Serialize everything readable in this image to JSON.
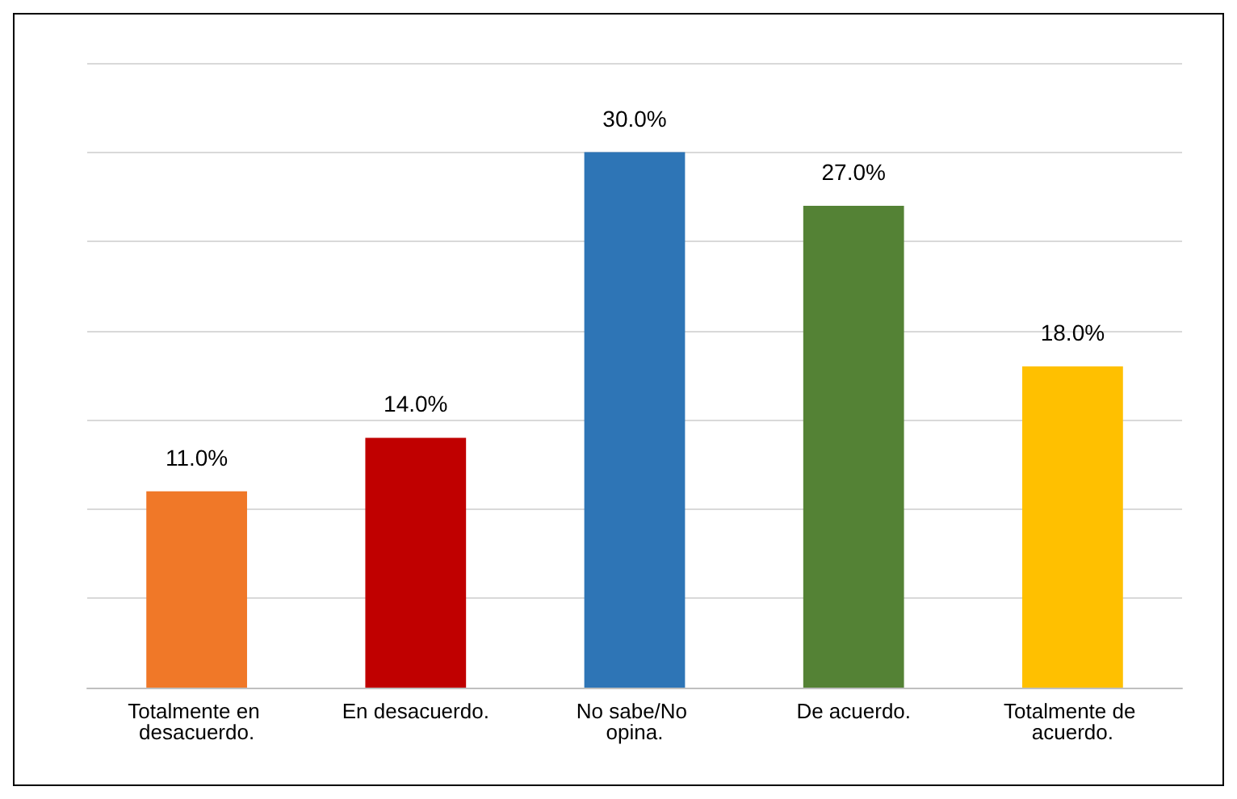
{
  "chart_data": {
    "type": "bar",
    "categories": [
      "Totalmente en desacuerdo.",
      "En desacuerdo.",
      "No sabe/No opina.",
      "De acuerdo.",
      "Totalmente de acuerdo."
    ],
    "values": [
      11.0,
      14.0,
      30.0,
      27.0,
      18.0
    ],
    "value_labels": [
      "11.0%",
      "14.0%",
      "30.0%",
      "27.0%",
      "18.0%"
    ],
    "colors": [
      "#f07828",
      "#c00000",
      "#2e75b6",
      "#548235",
      "#ffc000"
    ],
    "ylim": [
      0,
      35
    ],
    "yticks": [
      {
        "value": 0,
        "label": null
      },
      {
        "value": 5,
        "label": null
      },
      {
        "value": 10,
        "label": null
      },
      {
        "value": 15,
        "label": null
      },
      {
        "value": 20,
        "label": null
      },
      {
        "value": 25,
        "label": null
      },
      {
        "value": 30,
        "label": null
      },
      {
        "value": 35,
        "label": null
      }
    ],
    "grid": "y"
  }
}
